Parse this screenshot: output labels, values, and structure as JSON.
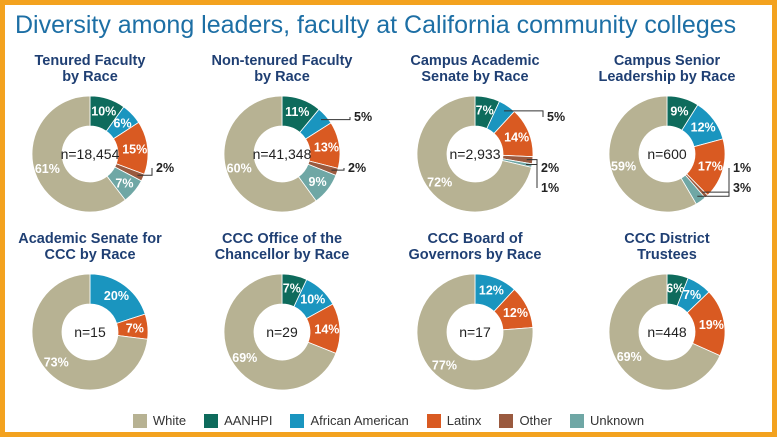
{
  "title": "Diversity among leaders, faculty at California community colleges",
  "colors": {
    "White": "#b7b293",
    "AANHPI": "#0e6b5c",
    "African American": "#1a95bf",
    "Latinx": "#d95a22",
    "Other": "#9a5a3f",
    "Unknown": "#6fa7a5",
    "label_dark": "#222222",
    "label_light": "#ffffff"
  },
  "legend": [
    "White",
    "AANHPI",
    "African American",
    "Latinx",
    "Other",
    "Unknown"
  ],
  "chart_data": [
    {
      "type": "pie",
      "title": [
        "Tenured Faculty",
        "by Race"
      ],
      "n_label": "n=18,454",
      "slices": [
        {
          "category": "AANHPI",
          "value": 10,
          "label": "10%"
        },
        {
          "category": "African American",
          "value": 6,
          "label": "6%"
        },
        {
          "category": "Latinx",
          "value": 15,
          "label": "15%"
        },
        {
          "category": "Other",
          "value": 2,
          "label": "2%"
        },
        {
          "category": "Unknown",
          "value": 7,
          "label": "7%"
        },
        {
          "category": "White",
          "value": 61,
          "label": "61%"
        }
      ]
    },
    {
      "type": "pie",
      "title": [
        "Non-tenured Faculty",
        "by Race"
      ],
      "n_label": "n=41,348",
      "slices": [
        {
          "category": "AANHPI",
          "value": 11,
          "label": "11%"
        },
        {
          "category": "African American",
          "value": 5,
          "label": "5%"
        },
        {
          "category": "Latinx",
          "value": 13,
          "label": "13%"
        },
        {
          "category": "Other",
          "value": 2,
          "label": "2%"
        },
        {
          "category": "Unknown",
          "value": 9,
          "label": "9%"
        },
        {
          "category": "White",
          "value": 60,
          "label": "60%"
        }
      ]
    },
    {
      "type": "pie",
      "title": [
        "Campus Academic",
        "Senate by Race"
      ],
      "n_label": "n=2,933",
      "slices": [
        {
          "category": "AANHPI",
          "value": 7,
          "label": "7%"
        },
        {
          "category": "African American",
          "value": 5,
          "label": "5%"
        },
        {
          "category": "Latinx",
          "value": 14,
          "label": "14%"
        },
        {
          "category": "Other",
          "value": 2,
          "label": "2%"
        },
        {
          "category": "Unknown",
          "value": 1,
          "label": "1%"
        },
        {
          "category": "White",
          "value": 72,
          "label": "72%"
        }
      ]
    },
    {
      "type": "pie",
      "title": [
        "Campus Senior",
        "Leadership by Race"
      ],
      "n_label": "n=600",
      "slices": [
        {
          "category": "AANHPI",
          "value": 9,
          "label": "9%"
        },
        {
          "category": "African American",
          "value": 12,
          "label": "12%"
        },
        {
          "category": "Latinx",
          "value": 17,
          "label": "17%"
        },
        {
          "category": "Other",
          "value": 1,
          "label": "1%"
        },
        {
          "category": "Unknown",
          "value": 3,
          "label": "3%"
        },
        {
          "category": "White",
          "value": 59,
          "label": "59%"
        }
      ]
    },
    {
      "type": "pie",
      "title": [
        "Academic Senate for",
        "CCC by Race"
      ],
      "n_label": "n=15",
      "slices": [
        {
          "category": "African American",
          "value": 20,
          "label": "20%"
        },
        {
          "category": "Latinx",
          "value": 7,
          "label": "7%"
        },
        {
          "category": "White",
          "value": 73,
          "label": "73%"
        }
      ]
    },
    {
      "type": "pie",
      "title": [
        "CCC Office of the",
        "Chancellor by Race"
      ],
      "n_label": "n=29",
      "slices": [
        {
          "category": "AANHPI",
          "value": 7,
          "label": "7%"
        },
        {
          "category": "African American",
          "value": 10,
          "label": "10%"
        },
        {
          "category": "Latinx",
          "value": 14,
          "label": "14%"
        },
        {
          "category": "White",
          "value": 69,
          "label": "69%"
        }
      ]
    },
    {
      "type": "pie",
      "title": [
        "CCC Board of",
        "Governors by Race"
      ],
      "n_label": "n=17",
      "slices": [
        {
          "category": "African American",
          "value": 12,
          "label": "12%"
        },
        {
          "category": "Latinx",
          "value": 12,
          "label": "12%"
        },
        {
          "category": "White",
          "value": 77,
          "label": "77%"
        }
      ]
    },
    {
      "type": "pie",
      "title": [
        "CCC District",
        "Trustees"
      ],
      "n_label": "n=448",
      "slices": [
        {
          "category": "AANHPI",
          "value": 6,
          "label": "6%"
        },
        {
          "category": "African American",
          "value": 7,
          "label": "7%"
        },
        {
          "category": "Latinx",
          "value": 19,
          "label": "19%"
        },
        {
          "category": "White",
          "value": 69,
          "label": "69%"
        }
      ]
    }
  ]
}
